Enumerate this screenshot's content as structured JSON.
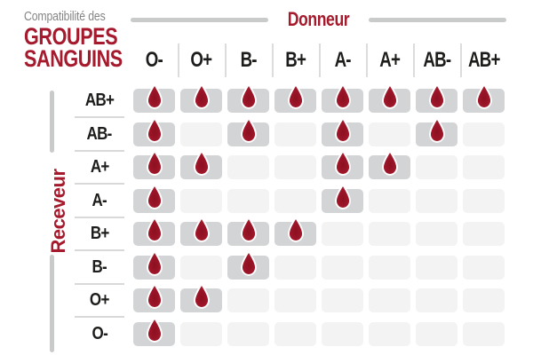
{
  "title": {
    "kicker": "Compatibilité des",
    "line1": "GROUPES",
    "line2": "SANGUINS"
  },
  "axes": {
    "donor": "Donneur",
    "receiver": "Receveur"
  },
  "chart_data": {
    "type": "heatmap",
    "title": "Compatibilité des groupes sanguins",
    "x_axis_label": "Donneur",
    "y_axis_label": "Receveur",
    "columns": [
      "O-",
      "O+",
      "B-",
      "B+",
      "A-",
      "A+",
      "AB-",
      "AB+"
    ],
    "rows": [
      "AB+",
      "AB-",
      "A+",
      "A-",
      "B+",
      "B-",
      "O+",
      "O-"
    ],
    "matrix": [
      [
        1,
        1,
        1,
        1,
        1,
        1,
        1,
        1
      ],
      [
        1,
        0,
        1,
        0,
        1,
        0,
        1,
        0
      ],
      [
        1,
        1,
        0,
        0,
        1,
        1,
        0,
        0
      ],
      [
        1,
        0,
        0,
        0,
        1,
        0,
        0,
        0
      ],
      [
        1,
        1,
        1,
        1,
        0,
        0,
        0,
        0
      ],
      [
        1,
        0,
        1,
        0,
        0,
        0,
        0,
        0
      ],
      [
        1,
        1,
        0,
        0,
        0,
        0,
        0,
        0
      ],
      [
        1,
        0,
        0,
        0,
        0,
        0,
        0,
        0
      ]
    ],
    "marker": "blood-drop",
    "marker_meaning": "compatible",
    "legend_position": "none",
    "grid": "off"
  },
  "colors": {
    "blood_red": "#A51A2C",
    "drop_core": "#8C1021",
    "drop_mid": "#9A1527",
    "drop_edge": "#AE2033",
    "kicker_gray": "#858585",
    "label_dark": "#1D1D1B",
    "cell_filled": "#D2D4D5",
    "cell_empty": "#F3F3F3",
    "divider": "#DCDCDC",
    "axis_line": "#C9CBCB",
    "row_separator": "#D9D9D9"
  }
}
